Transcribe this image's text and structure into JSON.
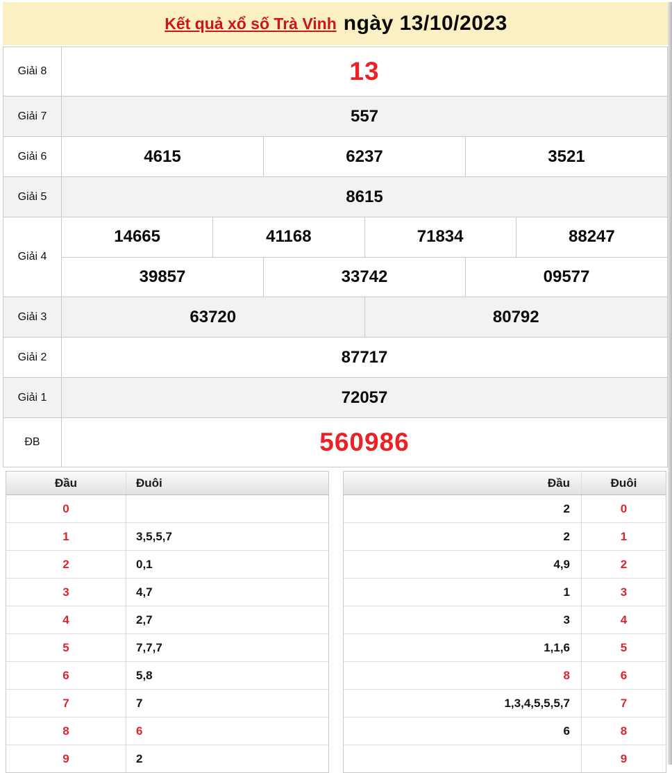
{
  "colors": {
    "title_bar_bg": "#fbf0c4",
    "link_red": "#cd1518",
    "big_number_red": "#ed2024",
    "digit_red": "#d9262c",
    "row_alt_bg": "#f2f2f2",
    "border": "#c9c9c9"
  },
  "header": {
    "title_link": "Kết quả xổ số Trà Vinh",
    "title_date": "ngày 13/10/2023"
  },
  "results": {
    "rows": [
      {
        "label": "Giải 8",
        "groups": [
          [
            "13"
          ]
        ]
      },
      {
        "label": "Giải 7",
        "groups": [
          [
            "557"
          ]
        ]
      },
      {
        "label": "Giải 6",
        "groups": [
          [
            "4615",
            "6237",
            "3521"
          ]
        ]
      },
      {
        "label": "Giải 5",
        "groups": [
          [
            "8615"
          ]
        ]
      },
      {
        "label": "Giải 4",
        "groups": [
          [
            "14665",
            "41168",
            "71834",
            "88247"
          ],
          [
            "39857",
            "33742",
            "09577"
          ]
        ]
      },
      {
        "label": "Giải 3",
        "groups": [
          [
            "63720",
            "80792"
          ]
        ]
      },
      {
        "label": "Giải 2",
        "groups": [
          [
            "87717"
          ]
        ]
      },
      {
        "label": "Giải 1",
        "groups": [
          [
            "72057"
          ]
        ]
      },
      {
        "label": "ĐB",
        "groups": [
          [
            "560986"
          ]
        ]
      }
    ]
  },
  "stats_left": {
    "headers": {
      "dau": "Đầu",
      "duoi": "Đuôi"
    },
    "rows": [
      {
        "dau": "0",
        "duoi": ""
      },
      {
        "dau": "1",
        "duoi": "3,5,5,7"
      },
      {
        "dau": "2",
        "duoi": "0,1"
      },
      {
        "dau": "3",
        "duoi": "4,7"
      },
      {
        "dau": "4",
        "duoi": "2,7"
      },
      {
        "dau": "5",
        "duoi": "7,7,7"
      },
      {
        "dau": "6",
        "duoi": "5,8"
      },
      {
        "dau": "7",
        "duoi": "7"
      },
      {
        "dau": "8",
        "duoi": "6"
      },
      {
        "dau": "9",
        "duoi": "2"
      }
    ]
  },
  "stats_right": {
    "headers": {
      "dau": "Đầu",
      "duoi": "Đuôi"
    },
    "rows": [
      {
        "dau": "2",
        "duoi": "0"
      },
      {
        "dau": "2",
        "duoi": "1"
      },
      {
        "dau": "4,9",
        "duoi": "2"
      },
      {
        "dau": "1",
        "duoi": "3"
      },
      {
        "dau": "3",
        "duoi": "4"
      },
      {
        "dau": "1,1,6",
        "duoi": "5"
      },
      {
        "dau": "8",
        "duoi": "6"
      },
      {
        "dau": "1,3,4,5,5,5,7",
        "duoi": "7"
      },
      {
        "dau": "6",
        "duoi": "8"
      },
      {
        "dau": "",
        "duoi": "9"
      }
    ]
  }
}
